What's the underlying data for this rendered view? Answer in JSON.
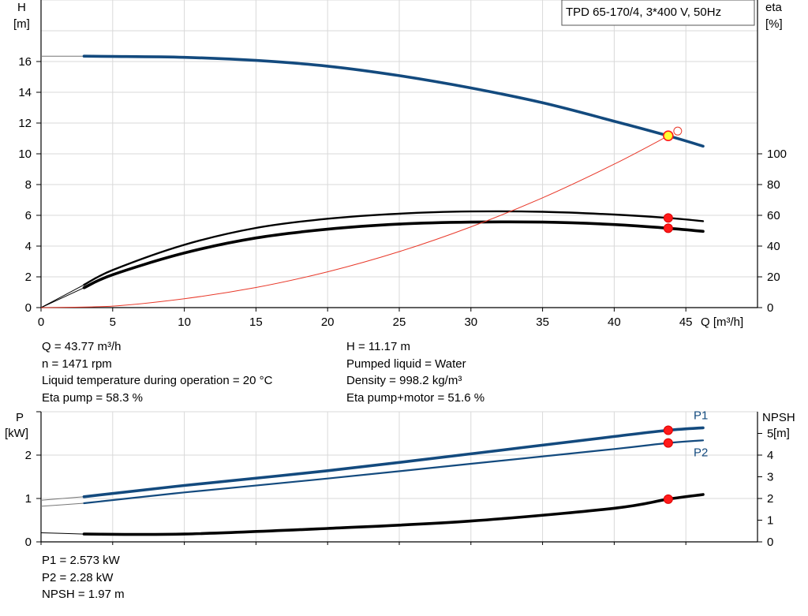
{
  "chart_data": [
    {
      "type": "line",
      "title": "TPD 65-170/4, 3*400 V, 50Hz",
      "xlabel": "Q [m³/h]",
      "ylabel_left": [
        "H",
        "[m]"
      ],
      "ylabel_right": [
        "eta",
        "[%]"
      ],
      "xlim": [
        0,
        50
      ],
      "ylim_left": [
        0,
        20
      ],
      "ylim_right": [
        0,
        200
      ],
      "x_ticks": [
        0,
        5,
        10,
        15,
        20,
        25,
        30,
        35,
        40,
        45
      ],
      "y_ticks_left": [
        0,
        2,
        4,
        6,
        8,
        10,
        12,
        14,
        16
      ],
      "y_ticks_right": [
        0,
        20,
        40,
        60,
        80,
        100
      ],
      "grid": true,
      "series": [
        {
          "key": "H",
          "axis": "left",
          "color": "#134a7e",
          "x": [
            0,
            3,
            5,
            10,
            15,
            20,
            25,
            30,
            35,
            40,
            43.77,
            46.2
          ],
          "y": [
            16.35,
            16.35,
            16.33,
            16.27,
            16.07,
            15.7,
            15.08,
            14.28,
            13.32,
            12.12,
            11.17,
            10.5
          ]
        },
        {
          "key": "eta_pump",
          "axis": "right",
          "color": "#000000",
          "x": [
            0,
            3,
            5,
            10,
            15,
            20,
            25,
            30,
            35,
            40,
            43.77,
            46.2
          ],
          "y": [
            0,
            14.8,
            24.4,
            40.8,
            51.8,
            57.8,
            61.1,
            62.5,
            62.3,
            60.5,
            58.3,
            56.2
          ]
        },
        {
          "key": "eta_pump_motor",
          "axis": "right",
          "color": "#000000",
          "x": [
            0,
            3,
            5,
            10,
            15,
            20,
            25,
            30,
            35,
            40,
            43.77,
            46.2
          ],
          "y": [
            0,
            12.9,
            21.4,
            35.5,
            45.3,
            51,
            54.3,
            55.6,
            55.6,
            54,
            51.6,
            49.6
          ]
        },
        {
          "key": "system_curve",
          "axis": "left",
          "color": "#e8392a",
          "x": [
            0,
            5,
            10,
            15,
            20,
            25,
            30,
            35,
            40,
            43.77
          ],
          "y": [
            0,
            0.1,
            0.58,
            1.31,
            2.33,
            3.64,
            5.25,
            7.14,
            9.33,
            11.17
          ]
        }
      ],
      "markers": [
        {
          "series": "H",
          "x": 43.77,
          "y": 11.17
        },
        {
          "series": "eta_pump",
          "x": 43.77,
          "y": 58.3
        },
        {
          "series": "eta_pump_motor",
          "x": 43.77,
          "y": 51.6
        }
      ]
    },
    {
      "type": "line",
      "ylabel_left": [
        "P",
        "[kW]"
      ],
      "ylabel_right": [
        "NPSH",
        "[m]"
      ],
      "xlim": [
        0,
        50
      ],
      "ylim_left": [
        0,
        3
      ],
      "ylim_right": [
        0,
        6
      ],
      "y_ticks_left": [
        0,
        1,
        2
      ],
      "y_ticks_right": [
        0,
        1,
        2,
        3,
        4,
        5
      ],
      "grid": true,
      "series": [
        {
          "key": "P1",
          "name": "P1",
          "axis": "left",
          "color": "#134a7e",
          "x": [
            0,
            3,
            10,
            20,
            30,
            40,
            43.77,
            46.2
          ],
          "y": [
            0.96,
            1.04,
            1.3,
            1.64,
            2.03,
            2.43,
            2.573,
            2.63
          ]
        },
        {
          "key": "P2",
          "name": "P2",
          "axis": "left",
          "color": "#134a7e",
          "x": [
            0,
            3,
            10,
            20,
            30,
            40,
            43.77,
            46.2
          ],
          "y": [
            0.82,
            0.89,
            1.14,
            1.46,
            1.8,
            2.14,
            2.28,
            2.34
          ]
        },
        {
          "key": "NPSH",
          "axis": "right",
          "color": "#000000",
          "x": [
            0,
            3,
            10,
            20,
            30,
            40,
            43.77,
            46.2
          ],
          "y": [
            0.42,
            0.36,
            0.36,
            0.62,
            0.96,
            1.55,
            1.97,
            2.18
          ]
        }
      ],
      "markers": [
        {
          "series": "P1",
          "x": 43.77,
          "y": 2.573
        },
        {
          "series": "P2",
          "x": 43.77,
          "y": 2.28
        },
        {
          "series": "NPSH",
          "x": 43.77,
          "y": 1.97
        }
      ]
    }
  ],
  "info": {
    "left": [
      "Q = 43.77 m³/h",
      "n = 1471 rpm",
      "Liquid temperature during operation = 20 °C",
      "Eta pump = 58.3 %"
    ],
    "right": [
      "H = 11.17 m",
      "Pumped liquid = Water",
      "Density = 998.2 kg/m³",
      "Eta pump+motor = 51.6 %"
    ],
    "bottom": [
      "P1 = 2.573 kW",
      "P2 = 2.28 kW",
      "NPSH = 1.97 m"
    ]
  },
  "colors": {
    "blue": "#134a7e",
    "red": "#ff1a1a",
    "thin_red": "#e8392a",
    "yellow": "#ffff33",
    "grid": "#d9d9d9"
  }
}
